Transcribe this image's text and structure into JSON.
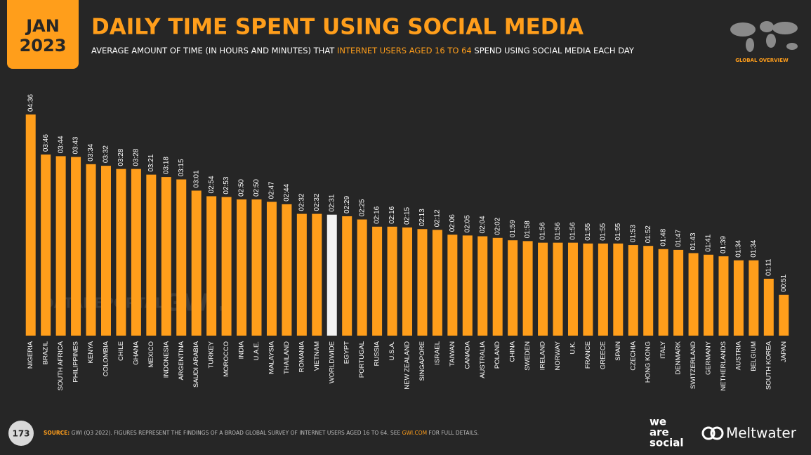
{
  "chart_data": {
    "type": "bar",
    "badge": {
      "month": "JAN",
      "year": "2023"
    },
    "title": "DAILY TIME SPENT USING SOCIAL MEDIA",
    "subtitle": {
      "before": "AVERAGE AMOUNT OF TIME (IN HOURS AND MINUTES) THAT ",
      "highlight": "INTERNET USERS AGED 16 TO 64",
      "after": " SPEND USING SOCIAL MEDIA EACH DAY"
    },
    "section": "GLOBAL OVERVIEW",
    "watermarks": [
      "DATAREPORTAL",
      "GWI."
    ],
    "categories": [
      "NIGERIA",
      "BRAZIL",
      "SOUTH AFRICA",
      "PHILIPPINES",
      "KENYA",
      "COLOMBIA",
      "CHILE",
      "GHANA",
      "MEXICO",
      "INDONESIA",
      "ARGENTINA",
      "SAUDI ARABIA",
      "TURKEY",
      "MOROCCO",
      "INDIA",
      "U.A.E.",
      "MALAYSIA",
      "THAILAND",
      "ROMANIA",
      "VIETNAM",
      "WORLDWIDE",
      "EGYPT",
      "PORTUGAL",
      "RUSSIA",
      "U.S.A.",
      "NEW ZEALAND",
      "SINGAPORE",
      "ISRAEL",
      "TAIWAN",
      "CANADA",
      "AUSTRALIA",
      "POLAND",
      "CHINA",
      "SWEDEN",
      "IRELAND",
      "NORWAY",
      "U.K.",
      "FRANCE",
      "GREECE",
      "SPAIN",
      "CZECHIA",
      "HONG KONG",
      "ITALY",
      "DENMARK",
      "SWITZERLAND",
      "GERMANY",
      "NETHERLANDS",
      "AUSTRIA",
      "BELGIUM",
      "SOUTH KOREA",
      "JAPAN"
    ],
    "values": [
      276,
      226,
      224,
      223,
      214,
      212,
      208,
      208,
      201,
      198,
      195,
      181,
      174,
      173,
      170,
      170,
      167,
      164,
      152,
      152,
      151,
      149,
      145,
      136,
      136,
      135,
      133,
      132,
      126,
      125,
      124,
      122,
      119,
      118,
      116,
      116,
      116,
      115,
      115,
      115,
      113,
      112,
      108,
      107,
      103,
      101,
      99,
      94,
      94,
      71,
      51
    ],
    "value_labels": [
      "04:36",
      "03:46",
      "03:44",
      "03:43",
      "03:34",
      "03:32",
      "03:28",
      "03:28",
      "03:21",
      "03:18",
      "03:15",
      "03:01",
      "02:54",
      "02:53",
      "02:50",
      "02:50",
      "02:47",
      "02:44",
      "02:32",
      "02:32",
      "02:31",
      "02:29",
      "02:25",
      "02:16",
      "02:16",
      "02:15",
      "02:13",
      "02:12",
      "02:06",
      "02:05",
      "02:04",
      "02:02",
      "01:59",
      "01:58",
      "01:56",
      "01:56",
      "01:56",
      "01:55",
      "01:55",
      "01:55",
      "01:53",
      "01:52",
      "01:48",
      "01:47",
      "01:43",
      "01:41",
      "01:39",
      "01:34",
      "01:34",
      "01:11",
      "00:51"
    ],
    "colors": [
      "#ff9e1b",
      "#ff9e1b",
      "#ff9e1b",
      "#ff9e1b",
      "#ff9e1b",
      "#ff9e1b",
      "#ff9e1b",
      "#ff9e1b",
      "#ff9e1b",
      "#ff9e1b",
      "#ff9e1b",
      "#ff9e1b",
      "#ff9e1b",
      "#ff9e1b",
      "#ff9e1b",
      "#ff9e1b",
      "#ff9e1b",
      "#ff9e1b",
      "#ff9e1b",
      "#ff9e1b",
      "#f2f2f2",
      "#ff9e1b",
      "#ff9e1b",
      "#ff9e1b",
      "#ff9e1b",
      "#ff9e1b",
      "#ff9e1b",
      "#ff9e1b",
      "#ff9e1b",
      "#ff9e1b",
      "#ff9e1b",
      "#ff9e1b",
      "#ff9e1b",
      "#ff9e1b",
      "#ff9e1b",
      "#ff9e1b",
      "#ff9e1b",
      "#ff9e1b",
      "#ff9e1b",
      "#ff9e1b",
      "#ff9e1b",
      "#ff9e1b",
      "#ff9e1b",
      "#ff9e1b",
      "#ff9e1b",
      "#ff9e1b",
      "#ff9e1b",
      "#ff9e1b",
      "#ff9e1b",
      "#ff9e1b",
      "#ff9e1b"
    ],
    "footer": {
      "page": "173",
      "source_label": "SOURCE:",
      "source_before": " GWI (Q3 2022). FIGURES REPRESENT THE FINDINGS OF A BROAD GLOBAL SURVEY OF INTERNET USERS AGED 16 TO 64. SEE ",
      "source_link": "GWI.COM",
      "source_after": " FOR FULL DETAILS.",
      "logo_1": [
        "we",
        "are",
        "social"
      ],
      "logo_2": "Meltwater"
    }
  }
}
